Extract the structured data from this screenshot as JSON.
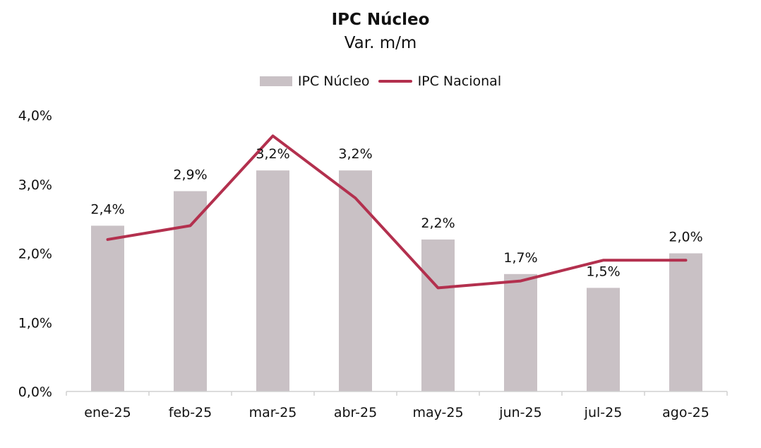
{
  "chart_data": {
    "type": "bar",
    "title": "IPC Núcleo",
    "subtitle": "Var. m/m",
    "categories": [
      "ene-25",
      "feb-25",
      "mar-25",
      "abr-25",
      "may-25",
      "jun-25",
      "jul-25",
      "ago-25"
    ],
    "series": [
      {
        "name": "IPC Núcleo",
        "type": "bar",
        "color": "#c9c1c5",
        "values": [
          2.4,
          2.9,
          3.2,
          3.2,
          2.2,
          1.7,
          1.5,
          2.0
        ],
        "labels": [
          "2,4%",
          "2,9%",
          "3,2%",
          "3,2%",
          "2,2%",
          "1,7%",
          "1,5%",
          "2,0%"
        ]
      },
      {
        "name": "IPC Nacional",
        "type": "line",
        "color": "#b3304e",
        "values": [
          2.2,
          2.4,
          3.7,
          2.8,
          1.5,
          1.6,
          1.9,
          1.9
        ]
      }
    ],
    "ylim": [
      0,
      4
    ],
    "yticks": [
      0,
      1,
      2,
      3,
      4
    ],
    "ytick_labels": [
      "0,0%",
      "1,0%",
      "2,0%",
      "3,0%",
      "4,0%"
    ],
    "grid": false,
    "legend_position": "top-center"
  }
}
